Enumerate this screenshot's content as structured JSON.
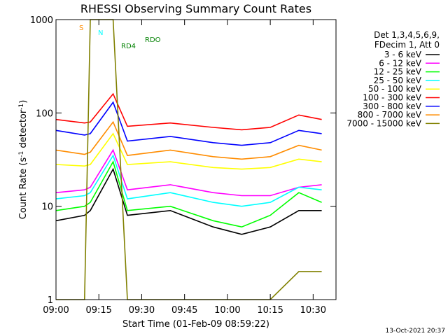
{
  "chart_data": {
    "type": "line",
    "title": "RHESSI Observing Summary Count Rates",
    "xlabel": "Start Time (01-Feb-09 08:59:22)",
    "ylabel": "Count Rate (s",
    "ylabel_sup": "-1",
    "ylabel_mid": " detector",
    "ylabel_end": ")",
    "y_scale": "log",
    "ylim": [
      1,
      1000
    ],
    "xlim": [
      "09:00",
      "10:38"
    ],
    "y_ticks": [
      "1",
      "10",
      "100",
      "1000"
    ],
    "x_ticks": [
      "09:00",
      "09:15",
      "09:30",
      "09:45",
      "10:00",
      "10:15",
      "10:30"
    ],
    "legend_header": [
      "Det 1,3,4,5,6,9,",
      "FDecim 1, Att 0"
    ],
    "legend_placement": "right",
    "series": [
      {
        "name": "3 - 6 keV",
        "color": "#000000",
        "x": [
          "09:00",
          "09:10",
          "09:12",
          "09:20",
          "09:25",
          "09:40",
          "09:55",
          "10:05",
          "10:15",
          "10:25",
          "10:33"
        ],
        "y": [
          7,
          8,
          9,
          25,
          8,
          9,
          6,
          5,
          6,
          9,
          9
        ]
      },
      {
        "name": "6 - 12 keV",
        "color": "#ff00ff",
        "x": [
          "09:00",
          "09:10",
          "09:12",
          "09:20",
          "09:25",
          "09:40",
          "09:55",
          "10:05",
          "10:15",
          "10:25",
          "10:33"
        ],
        "y": [
          14,
          15,
          16,
          40,
          15,
          17,
          14,
          13,
          13,
          16,
          17
        ]
      },
      {
        "name": "12 - 25 keV",
        "color": "#00ff00",
        "x": [
          "09:00",
          "09:10",
          "09:12",
          "09:20",
          "09:25",
          "09:40",
          "09:55",
          "10:05",
          "10:15",
          "10:25",
          "10:33"
        ],
        "y": [
          9,
          10,
          11,
          30,
          9,
          10,
          7,
          6,
          8,
          14,
          11
        ]
      },
      {
        "name": "25 - 50 keV",
        "color": "#00ffff",
        "x": [
          "09:00",
          "09:10",
          "09:12",
          "09:20",
          "09:25",
          "09:40",
          "09:55",
          "10:05",
          "10:15",
          "10:25",
          "10:33"
        ],
        "y": [
          12,
          13,
          14,
          35,
          12,
          14,
          11,
          10,
          11,
          16,
          15
        ]
      },
      {
        "name": "50 - 100 keV",
        "color": "#ffff00",
        "x": [
          "09:00",
          "09:10",
          "09:12",
          "09:20",
          "09:25",
          "09:40",
          "09:55",
          "10:05",
          "10:15",
          "10:25",
          "10:33"
        ],
        "y": [
          28,
          27,
          28,
          60,
          28,
          30,
          26,
          25,
          26,
          32,
          30
        ]
      },
      {
        "name": "100 - 300 keV",
        "color": "#ff0000",
        "x": [
          "09:00",
          "09:10",
          "09:12",
          "09:20",
          "09:25",
          "09:40",
          "09:55",
          "10:05",
          "10:15",
          "10:25",
          "10:33"
        ],
        "y": [
          85,
          78,
          80,
          160,
          72,
          78,
          70,
          66,
          70,
          95,
          85
        ]
      },
      {
        "name": "300 - 800 keV",
        "color": "#0000ff",
        "x": [
          "09:00",
          "09:10",
          "09:12",
          "09:20",
          "09:25",
          "09:40",
          "09:55",
          "10:05",
          "10:15",
          "10:25",
          "10:33"
        ],
        "y": [
          65,
          58,
          60,
          130,
          50,
          56,
          48,
          45,
          48,
          65,
          60
        ]
      },
      {
        "name": "800 - 7000 keV",
        "color": "#ff8c00",
        "x": [
          "09:00",
          "09:10",
          "09:12",
          "09:20",
          "09:25",
          "09:40",
          "09:55",
          "10:05",
          "10:15",
          "10:25",
          "10:33"
        ],
        "y": [
          40,
          36,
          38,
          80,
          35,
          40,
          34,
          32,
          34,
          45,
          40
        ]
      },
      {
        "name": "7000 - 15000 keV",
        "color": "#808000",
        "x": [
          "09:00",
          "09:10",
          "09:12",
          "09:20",
          "09:25",
          "09:40",
          "09:55",
          "10:05",
          "10:15",
          "10:25",
          "10:33"
        ],
        "y": [
          1,
          1,
          1000,
          1000,
          1,
          1,
          1,
          1,
          1,
          2,
          2
        ]
      }
    ],
    "annotations": [
      {
        "label": "S",
        "color": "#ff8c00"
      },
      {
        "label": "N",
        "color": "#00ffff"
      },
      {
        "label": "RD4",
        "color": "#008000"
      },
      {
        "label": "RDO",
        "color": "#008000"
      }
    ],
    "timestamp": "13-Oct-2021 20:37"
  }
}
